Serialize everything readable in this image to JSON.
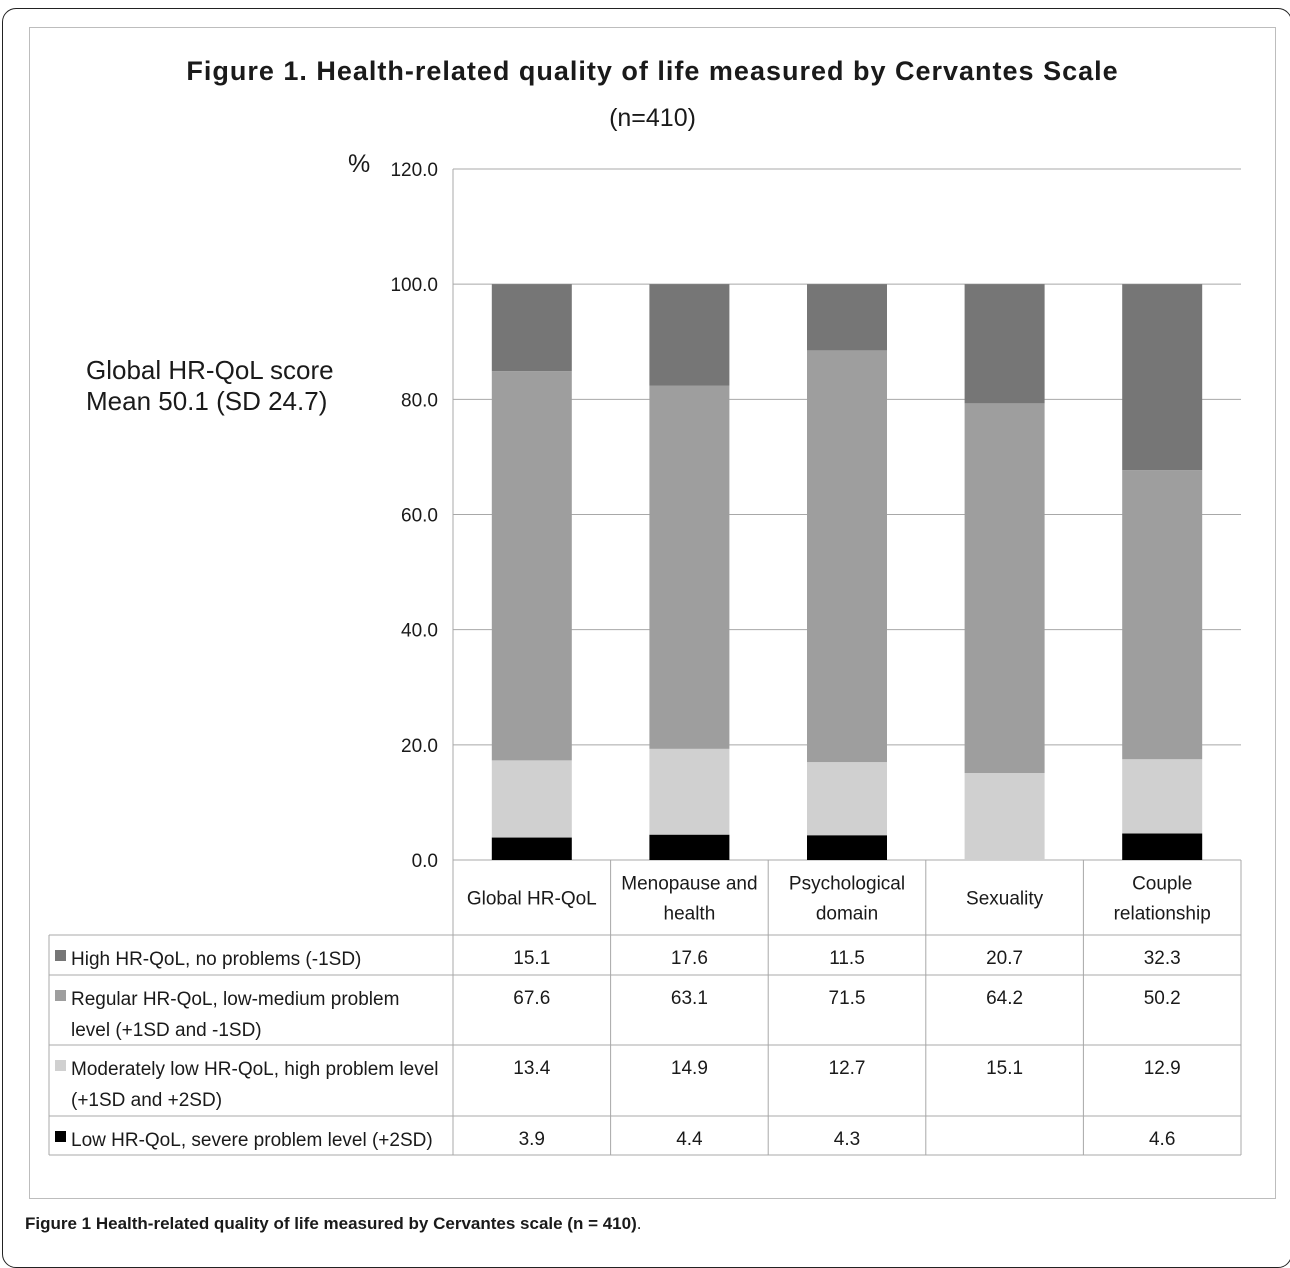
{
  "chart_data": {
    "type": "bar",
    "stacked": true,
    "title": "Figure 1. Health-related  quality of life measured by Cervantes Scale",
    "subtitle": "(n=410)",
    "ylabel": "%",
    "ylim": [
      0,
      120
    ],
    "yticks": [
      "0.0",
      "20.0",
      "40.0",
      "60.0",
      "80.0",
      "100.0",
      "120.0"
    ],
    "grid": true,
    "legend_placement": "table-below",
    "categories": [
      [
        "Global HR-QoL"
      ],
      [
        "Menopause and",
        "health"
      ],
      [
        "Psychological",
        "domain"
      ],
      [
        "Sexuality"
      ],
      [
        "Couple",
        "relationship"
      ]
    ],
    "series": [
      {
        "name": [
          "Low HR-QoL, severe problem level (+2SD)"
        ],
        "color": "#000000",
        "values": [
          3.9,
          4.4,
          4.3,
          null,
          4.6
        ],
        "labels": [
          "3.9",
          "4.4",
          "4.3",
          "",
          "4.6"
        ]
      },
      {
        "name": [
          "Moderately low HR-QoL, high problem level",
          "(+1SD and +2SD)"
        ],
        "color": "#d0d0d0",
        "values": [
          13.4,
          14.9,
          12.7,
          15.1,
          12.9
        ],
        "labels": [
          "13.4",
          "14.9",
          "12.7",
          "15.1",
          "12.9"
        ]
      },
      {
        "name": [
          "Regular HR-QoL, low-medium problem",
          "level (+1SD  and -1SD)"
        ],
        "color": "#9e9e9e",
        "values": [
          67.6,
          63.1,
          71.5,
          64.2,
          50.2
        ],
        "labels": [
          "67.6",
          "63.1",
          "71.5",
          "64.2",
          "50.2"
        ]
      },
      {
        "name": [
          "High HR-QoL, no problems (-1SD)"
        ],
        "color": "#767676",
        "values": [
          15.1,
          17.6,
          11.5,
          20.7,
          32.3
        ],
        "labels": [
          "15.1",
          "17.6",
          "11.5",
          "20.7",
          "32.3"
        ]
      }
    ],
    "table_row_order": [
      3,
      2,
      1,
      0
    ],
    "annotation": [
      "Global HR-QoL score",
      "Mean 50.1 (SD 24.7)"
    ]
  },
  "caption": {
    "bold": "Figure 1 Health-related quality of life measured by Cervantes scale (n = 410)",
    "rest": "."
  }
}
